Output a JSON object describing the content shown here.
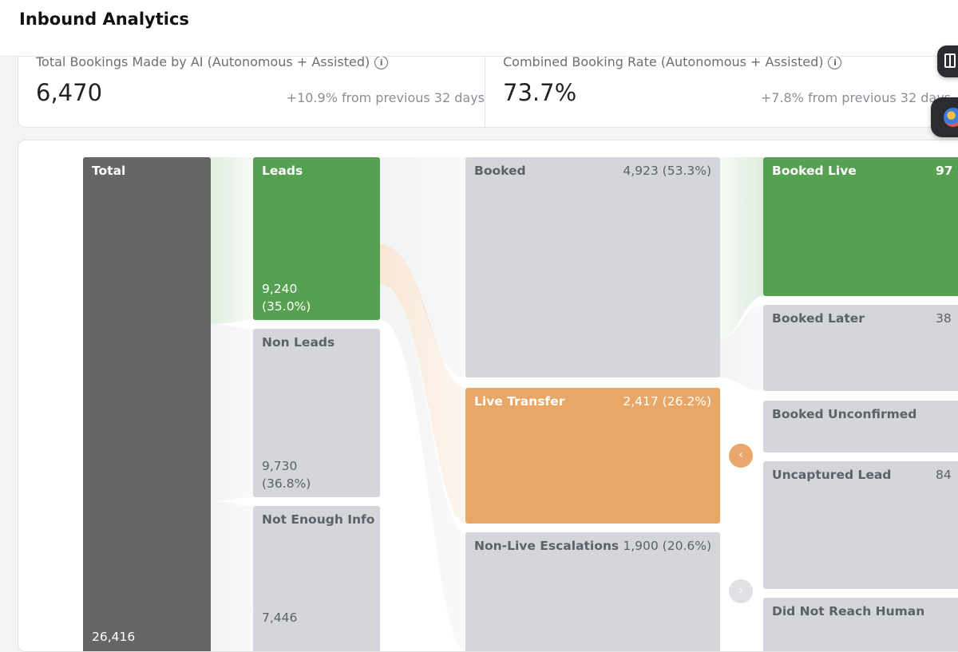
{
  "page": {
    "title": "Inbound Analytics"
  },
  "stats": [
    {
      "label": "Total Bookings Made by AI (Autonomous + Assisted)",
      "value": "6,470",
      "change": "+10.9% from previous 32 days",
      "info_icon": "info-icon"
    },
    {
      "label": "Combined Booking Rate (Autonomous + Assisted)",
      "value": "73.7%",
      "change": "+7.8% from previous 32 days",
      "info_icon": "info-icon"
    }
  ],
  "sankey": {
    "total": {
      "label": "Total",
      "value": "26,416"
    },
    "level1": [
      {
        "label": "Leads",
        "value": "9,240",
        "pct": "(35.0%)"
      },
      {
        "label": "Non Leads",
        "value": "9,730",
        "pct": "(36.8%)"
      },
      {
        "label": "Not Enough Info",
        "value": "7,446"
      }
    ],
    "level2": [
      {
        "label": "Booked",
        "value": "4,923 (53.3%)"
      },
      {
        "label": "Live Transfer",
        "value": "2,417 (26.2%)"
      },
      {
        "label": "Non-Live Escalations",
        "value": "1,900 (20.6%)"
      }
    ],
    "level3": [
      {
        "label": "Booked Live",
        "value": "97"
      },
      {
        "label": "Booked Later",
        "value": "38"
      },
      {
        "label": "Booked Unconfirmed",
        "value": ""
      },
      {
        "label": "Uncaptured Lead",
        "value": "84"
      },
      {
        "label": "Did Not Reach Human",
        "value": ""
      }
    ],
    "nav": {
      "prev": "‹",
      "next": "›"
    }
  },
  "colors": {
    "total": "#666666",
    "leads": "#56a052",
    "live_transfer": "#e8a766",
    "neutral": "#d4d6db",
    "accent_nav": "#eaa76b"
  },
  "side_buttons": [
    "book-icon",
    "globe-icon"
  ]
}
